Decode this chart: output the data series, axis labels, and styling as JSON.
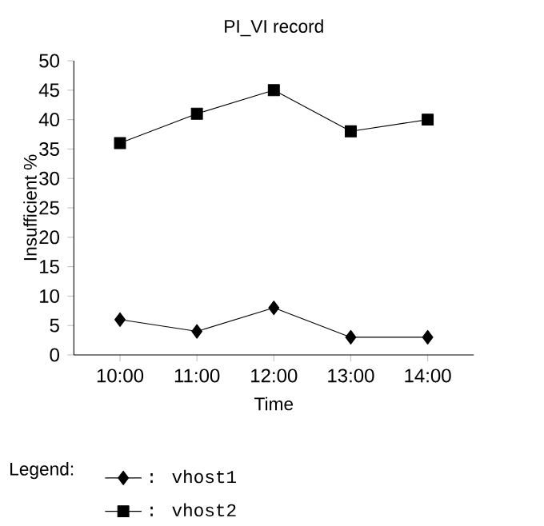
{
  "chart_data": {
    "type": "line",
    "title": "PI_VI record",
    "xlabel": "Time",
    "ylabel": "Insufficient %",
    "legend_title": "Legend:",
    "categories": [
      "10:00",
      "11:00",
      "12:00",
      "13:00",
      "14:00"
    ],
    "series": [
      {
        "name": ": vhost1",
        "color": "#000000",
        "marker": "diamond",
        "values": [
          6,
          4,
          8,
          3,
          3
        ]
      },
      {
        "name": ": vhost2",
        "color": "#000000",
        "marker": "square",
        "values": [
          36,
          41,
          45,
          38,
          40
        ]
      }
    ],
    "ylim": [
      0,
      50
    ],
    "yticks": [
      0,
      5,
      10,
      15,
      20,
      25,
      30,
      35,
      40,
      45,
      50
    ],
    "grid": false,
    "legend": "bottom left",
    "line_style": "solid"
  }
}
